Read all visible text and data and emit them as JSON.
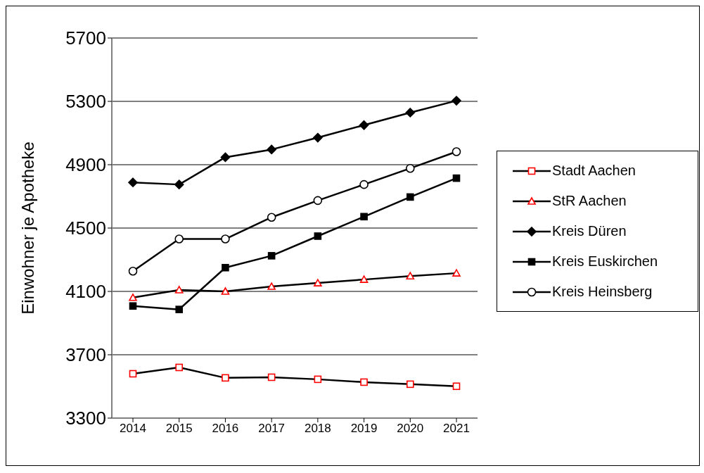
{
  "chart_data": {
    "type": "line",
    "ylabel": "Einwohner je Apotheke",
    "categories": [
      "2014",
      "2015",
      "2016",
      "2017",
      "2018",
      "2019",
      "2020",
      "2021"
    ],
    "series": [
      {
        "name": "Stadt Aachen",
        "color": "#ff0000",
        "marker": "square",
        "values": [
          3580,
          3620,
          3554,
          3558,
          3545,
          3527,
          3514,
          3501
        ]
      },
      {
        "name": "StR Aachen",
        "color": "#ff0000",
        "marker": "triangle",
        "values": [
          4061,
          4109,
          4100,
          4131,
          4153,
          4175,
          4197,
          4215
        ]
      },
      {
        "name": "Kreis Düren",
        "color": "#000000",
        "marker": "diamond",
        "values": [
          4788,
          4775,
          4947,
          4996,
          5071,
          5150,
          5229,
          5304
        ]
      },
      {
        "name": "Kreis Euskirchen",
        "color": "#000000",
        "marker": "square",
        "values": [
          4008,
          3986,
          4250,
          4325,
          4449,
          4572,
          4696,
          4815
        ]
      },
      {
        "name": "Kreis Heinsberg",
        "color": "#000000",
        "marker": "circle",
        "values": [
          4228,
          4431,
          4431,
          4568,
          4674,
          4775,
          4877,
          4982
        ]
      }
    ],
    "ylim": [
      3300,
      5700
    ],
    "yticks": [
      3300,
      3700,
      4100,
      4500,
      4900,
      5300,
      5700
    ],
    "grid": "y",
    "legend": "right"
  }
}
